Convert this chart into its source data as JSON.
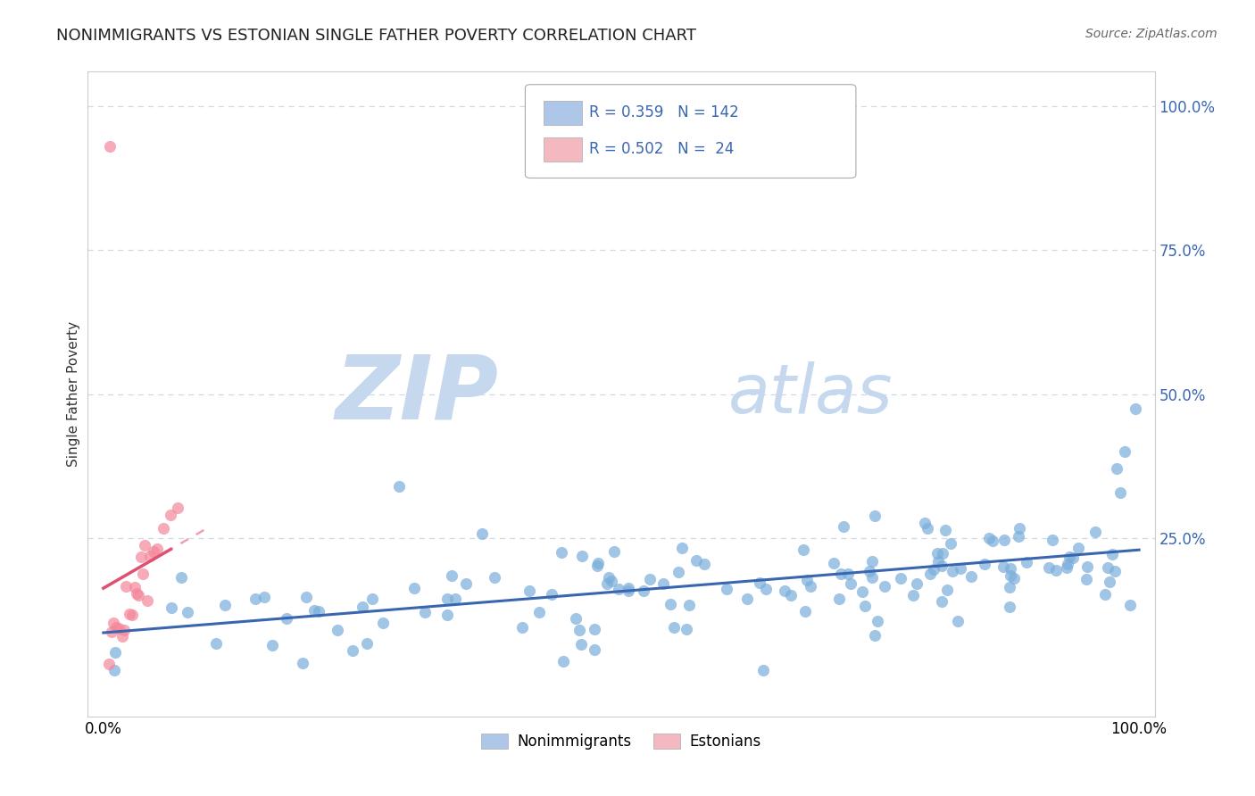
{
  "title": "NONIMMIGRANTS VS ESTONIAN SINGLE FATHER POVERTY CORRELATION CHART",
  "source": "Source: ZipAtlas.com",
  "ylabel": "Single Father Poverty",
  "y_tick_labels": [
    "25.0%",
    "50.0%",
    "75.0%",
    "100.0%"
  ],
  "y_tick_values": [
    0.25,
    0.5,
    0.75,
    1.0
  ],
  "legend_labels": [
    "Nonimmigrants",
    "Estonians"
  ],
  "legend_colors": [
    "#aec6e8",
    "#f4b8c1"
  ],
  "legend_R": [
    0.359,
    0.502
  ],
  "legend_N": [
    142,
    24
  ],
  "nonimmigrant_color": "#7aaddb",
  "estonian_color": "#f4879a",
  "nonimmigrant_line_color": "#3a66b0",
  "estonian_line_color": "#e05070",
  "estonian_dash_color": "#f0a0b0",
  "watermark_zip_color": "#c5d8ed",
  "watermark_atlas_color": "#c5d8ed",
  "background_color": "#ffffff",
  "grid_color": "#d0d8e8",
  "spine_color": "#cccccc",
  "xlim": [
    -0.015,
    1.015
  ],
  "ylim": [
    -0.06,
    1.06
  ],
  "title_fontsize": 13,
  "source_fontsize": 10,
  "tick_fontsize": 12,
  "ylabel_fontsize": 11
}
